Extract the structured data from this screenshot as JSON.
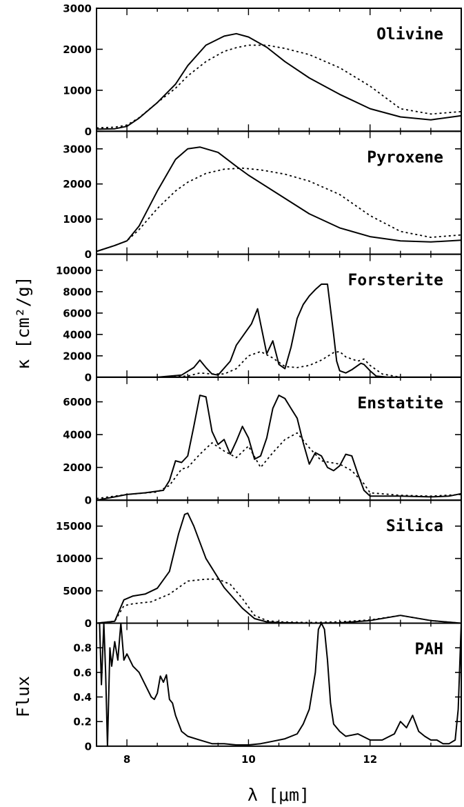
{
  "chart_data": {
    "type": "line",
    "shared_x": {
      "xlabel": "λ [μm]",
      "xlim": [
        7.5,
        13.5
      ],
      "ticks": [
        8,
        10,
        12
      ],
      "tick_labels": [
        "8",
        "10",
        "12"
      ]
    },
    "ylabel_opacity": "κ [cm²/g]",
    "ylabel_flux": "Flux",
    "panels": [
      {
        "name": "Olivine",
        "ylim": [
          0,
          3000
        ],
        "yticks": [
          0,
          1000,
          2000,
          3000
        ],
        "ytick_labels": [
          "0",
          "1000",
          "2000",
          "3000"
        ],
        "series": [
          {
            "style": "solid",
            "x": [
              7.5,
              7.8,
              8.0,
              8.2,
              8.5,
              8.8,
              9.0,
              9.3,
              9.6,
              9.8,
              10.0,
              10.3,
              10.6,
              11.0,
              11.5,
              12.0,
              12.5,
              13.0,
              13.5
            ],
            "y": [
              50,
              60,
              120,
              320,
              700,
              1150,
              1600,
              2100,
              2320,
              2380,
              2300,
              2050,
              1700,
              1300,
              900,
              550,
              350,
              280,
              380
            ]
          },
          {
            "style": "dotted",
            "x": [
              7.5,
              7.8,
              8.0,
              8.2,
              8.5,
              8.8,
              9.0,
              9.3,
              9.6,
              9.8,
              10.0,
              10.3,
              10.6,
              11.0,
              11.5,
              12.0,
              12.5,
              13.0,
              13.5
            ],
            "y": [
              80,
              100,
              150,
              330,
              700,
              1050,
              1350,
              1700,
              1950,
              2040,
              2100,
              2100,
              2020,
              1870,
              1550,
              1100,
              550,
              420,
              480
            ]
          }
        ]
      },
      {
        "name": "Pyroxene",
        "ylim": [
          0,
          3500
        ],
        "yticks": [
          0,
          1000,
          2000,
          3000
        ],
        "ytick_labels": [
          "0",
          "1000",
          "2000",
          "3000"
        ],
        "series": [
          {
            "style": "solid",
            "x": [
              7.5,
              7.8,
              8.0,
              8.2,
              8.5,
              8.8,
              9.0,
              9.2,
              9.5,
              9.8,
              10.0,
              10.5,
              11.0,
              11.5,
              12.0,
              12.5,
              13.0,
              13.5
            ],
            "y": [
              80,
              250,
              380,
              800,
              1800,
              2700,
              3000,
              3050,
              2900,
              2500,
              2250,
              1700,
              1150,
              750,
              500,
              380,
              350,
              400
            ]
          },
          {
            "style": "dotted",
            "x": [
              7.5,
              7.8,
              8.0,
              8.2,
              8.5,
              8.8,
              9.0,
              9.3,
              9.6,
              9.9,
              10.2,
              10.6,
              11.0,
              11.5,
              12.0,
              12.5,
              13.0,
              13.5
            ],
            "y": [
              80,
              250,
              380,
              700,
              1300,
              1800,
              2050,
              2300,
              2420,
              2450,
              2400,
              2280,
              2080,
              1700,
              1100,
              650,
              480,
              550
            ]
          }
        ]
      },
      {
        "name": "Forsterite",
        "ylim": [
          0,
          11500
        ],
        "yticks": [
          0,
          2000,
          4000,
          6000,
          8000,
          10000
        ],
        "ytick_labels": [
          "0",
          "2000",
          "4000",
          "6000",
          "8000",
          "10000"
        ],
        "series": [
          {
            "style": "solid",
            "x": [
              7.5,
              8.0,
              8.5,
              8.9,
              9.1,
              9.2,
              9.3,
              9.4,
              9.5,
              9.7,
              9.8,
              9.95,
              10.05,
              10.15,
              10.2,
              10.3,
              10.4,
              10.5,
              10.6,
              10.7,
              10.8,
              10.9,
              11.0,
              11.1,
              11.2,
              11.3,
              11.4,
              11.45,
              11.5,
              11.6,
              11.7,
              11.85,
              11.9,
              12.0,
              12.1,
              12.3,
              12.5,
              13.0,
              13.5
            ],
            "y": [
              0,
              0,
              0,
              200,
              900,
              1600,
              900,
              300,
              200,
              1500,
              3000,
              4200,
              5000,
              6400,
              5000,
              2200,
              3400,
              1200,
              800,
              2800,
              5500,
              6800,
              7600,
              8200,
              8700,
              8700,
              4000,
              1500,
              600,
              400,
              700,
              1300,
              1200,
              600,
              100,
              0,
              0,
              0,
              0
            ]
          },
          {
            "style": "dotted",
            "x": [
              7.5,
              8.5,
              9.0,
              9.2,
              9.4,
              9.6,
              9.8,
              10.0,
              10.2,
              10.4,
              10.6,
              10.8,
              11.0,
              11.2,
              11.4,
              11.5,
              11.6,
              11.8,
              11.9,
              12.0,
              12.2,
              12.5,
              13.0,
              13.5
            ],
            "y": [
              0,
              0,
              100,
              400,
              300,
              300,
              800,
              2000,
              2400,
              1800,
              1000,
              900,
              1100,
              1600,
              2300,
              2400,
              1900,
              1500,
              1700,
              1100,
              300,
              0,
              0,
              0
            ]
          }
        ]
      },
      {
        "name": "Enstatite",
        "ylim": [
          0,
          7500
        ],
        "yticks": [
          0,
          2000,
          4000,
          6000
        ],
        "ytick_labels": [
          "0",
          "2000",
          "4000",
          "6000"
        ],
        "series": [
          {
            "style": "solid",
            "x": [
              7.5,
              7.8,
              8.0,
              8.3,
              8.6,
              8.7,
              8.8,
              8.9,
              9.0,
              9.1,
              9.2,
              9.3,
              9.4,
              9.5,
              9.6,
              9.7,
              9.8,
              9.9,
              10.0,
              10.1,
              10.2,
              10.3,
              10.4,
              10.5,
              10.6,
              10.7,
              10.8,
              10.9,
              11.0,
              11.1,
              11.2,
              11.3,
              11.4,
              11.5,
              11.6,
              11.7,
              11.8,
              11.9,
              12.0,
              12.5,
              13.0,
              13.3,
              13.5
            ],
            "y": [
              0,
              200,
              350,
              450,
              600,
              1200,
              2400,
              2300,
              2700,
              4500,
              6400,
              6300,
              4200,
              3400,
              3700,
              2800,
              3600,
              4500,
              3800,
              2500,
              2700,
              3800,
              5600,
              6400,
              6200,
              5600,
              5000,
              3500,
              2200,
              2900,
              2700,
              2000,
              1800,
              2100,
              2800,
              2700,
              1600,
              600,
              250,
              250,
              200,
              250,
              400
            ]
          },
          {
            "style": "dotted",
            "x": [
              7.5,
              8.0,
              8.5,
              8.7,
              8.9,
              9.0,
              9.2,
              9.4,
              9.6,
              9.8,
              10.0,
              10.2,
              10.4,
              10.6,
              10.8,
              11.0,
              11.2,
              11.5,
              11.7,
              11.9,
              12.0,
              12.5,
              13.0,
              13.5
            ],
            "y": [
              100,
              350,
              500,
              900,
              1900,
              2000,
              2800,
              3500,
              3000,
              2600,
              3300,
              2000,
              2900,
              3700,
              4100,
              3200,
              2400,
              2200,
              1800,
              1000,
              450,
              300,
              250,
              350
            ]
          }
        ]
      },
      {
        "name": "Silica",
        "ylim": [
          0,
          19000
        ],
        "yticks": [
          0,
          5000,
          10000,
          15000
        ],
        "ytick_labels": [
          "0",
          "5000",
          "10000",
          "15000"
        ],
        "series": [
          {
            "style": "solid",
            "x": [
              7.5,
              7.8,
              7.95,
              8.1,
              8.3,
              8.5,
              8.7,
              8.85,
              8.95,
              9.0,
              9.1,
              9.3,
              9.6,
              9.9,
              10.1,
              10.3,
              10.5,
              11.0,
              11.5,
              12.0,
              12.5,
              13.0,
              13.5
            ],
            "y": [
              0,
              300,
              3600,
              4200,
              4500,
              5400,
              8000,
              13800,
              16800,
              17000,
              15000,
              10000,
              5500,
              2300,
              700,
              200,
              100,
              0,
              50,
              400,
              1200,
              400,
              0
            ]
          },
          {
            "style": "dotted",
            "x": [
              7.5,
              7.8,
              7.95,
              8.1,
              8.4,
              8.7,
              9.0,
              9.3,
              9.5,
              9.7,
              9.9,
              10.1,
              10.3,
              10.5,
              11.0,
              11.5,
              12.0,
              12.5,
              13.0,
              13.5
            ],
            "y": [
              0,
              300,
              2700,
              3000,
              3300,
              4500,
              6500,
              6800,
              6800,
              6000,
              3800,
              1200,
              400,
              200,
              100,
              200,
              500,
              1200,
              400,
              0
            ]
          }
        ]
      },
      {
        "name": "PAH",
        "ylim": [
          0,
          1.0
        ],
        "yticks": [
          0,
          0.2,
          0.4,
          0.6,
          0.8
        ],
        "ytick_labels": [
          "0",
          "0.2",
          "0.4",
          "0.6",
          "0.8"
        ],
        "series": [
          {
            "style": "solid",
            "x": [
              7.55,
              7.58,
              7.62,
              7.65,
              7.68,
              7.72,
              7.75,
              7.8,
              7.85,
              7.9,
              7.95,
              8.0,
              8.1,
              8.2,
              8.3,
              8.4,
              8.45,
              8.5,
              8.55,
              8.6,
              8.65,
              8.7,
              8.75,
              8.8,
              8.9,
              9.0,
              9.2,
              9.4,
              9.6,
              9.8,
              10.0,
              10.2,
              10.4,
              10.6,
              10.8,
              10.9,
              11.0,
              11.1,
              11.15,
              11.2,
              11.25,
              11.3,
              11.35,
              11.4,
              11.5,
              11.6,
              11.8,
              12.0,
              12.2,
              12.4,
              12.5,
              12.6,
              12.7,
              12.8,
              12.9,
              13.0,
              13.1,
              13.2,
              13.3,
              13.4,
              13.45,
              13.5
            ],
            "y": [
              1.0,
              0.5,
              1.0,
              0.6,
              0.0,
              0.8,
              0.65,
              0.85,
              0.7,
              1.0,
              0.7,
              0.75,
              0.65,
              0.6,
              0.5,
              0.4,
              0.38,
              0.43,
              0.57,
              0.52,
              0.58,
              0.38,
              0.35,
              0.25,
              0.12,
              0.08,
              0.05,
              0.02,
              0.02,
              0.01,
              0.01,
              0.02,
              0.04,
              0.06,
              0.1,
              0.18,
              0.3,
              0.6,
              0.95,
              1.0,
              0.95,
              0.7,
              0.35,
              0.18,
              0.12,
              0.08,
              0.1,
              0.05,
              0.05,
              0.1,
              0.2,
              0.15,
              0.25,
              0.12,
              0.08,
              0.05,
              0.05,
              0.02,
              0.02,
              0.05,
              0.3,
              1.0
            ]
          }
        ]
      }
    ]
  }
}
